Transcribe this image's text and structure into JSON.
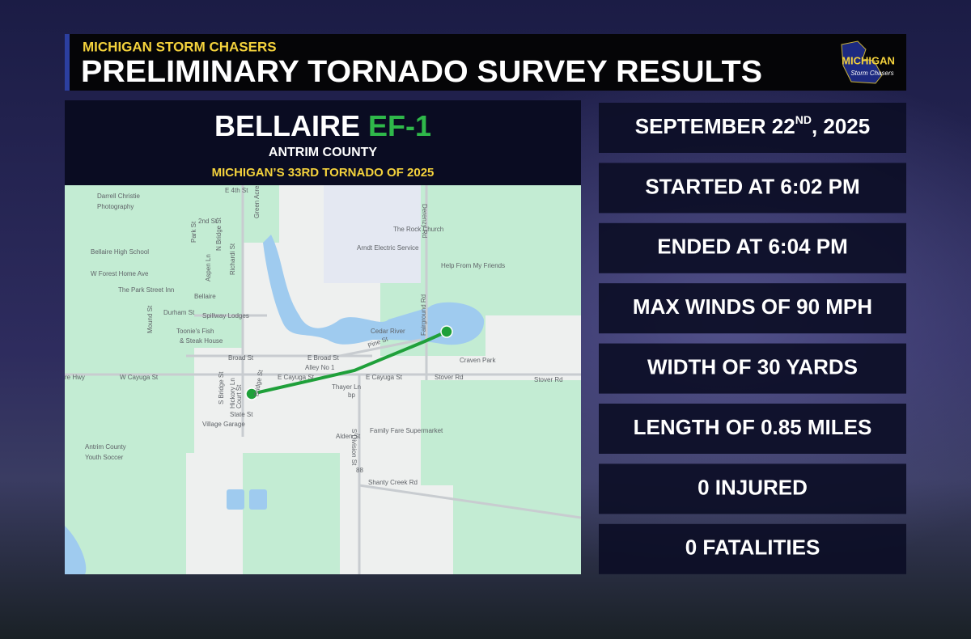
{
  "header": {
    "subtitle": "MICHIGAN STORM CHASERS",
    "title": "PRELIMINARY TORNADO SURVEY RESULTS",
    "logo": "MICHIGAN",
    "logo_script": "Storm Chasers"
  },
  "panel": {
    "town": "BELLAIRE",
    "rating": "EF-1",
    "county": "ANTRIM COUNTY",
    "note": "MICHIGAN’S 33RD TORNADO OF 2025"
  },
  "date": {
    "text": "SEPTEMBER 22",
    "sup": "ND",
    "tail": ", 2025"
  },
  "stats": [
    "STARTED AT 6:02 PM",
    "ENDED AT 6:04 PM",
    "MAX WINDS OF 90 MPH",
    "WIDTH OF 30 YARDS",
    "LENGTH OF 0.85 MILES",
    "0 INJURED",
    "0 FATALITIES"
  ],
  "map": {
    "labels": [
      "Darrell Christie",
      "Photography",
      "E 4th St",
      "2nd St",
      "Park St",
      "N Bridge St",
      "Green Acres Ave",
      "Bellaire High School",
      "W Forest Home Ave",
      "Aspen Ln",
      "Richardi St",
      "Bellaire",
      "The Park Street Inn",
      "Durham St",
      "Spillway Lodges",
      "Toonie's Fish",
      "& Steak House",
      "Mound St",
      "Cedar River",
      "Broad St",
      "E Broad St",
      "Alley No 1",
      "Pine St",
      "re Hwy",
      "W Cayuga St",
      "E Cayuga St",
      "E Cayuga St",
      "Stover Rd",
      "Stover Rd",
      "Craven Park",
      "Thayer Ln",
      "Court St",
      "Hickory Ln",
      "S Bridge St",
      "State St",
      "Village Garage",
      "Antrim County",
      "Youth Soccer",
      "Family Fare Supermarket",
      "Alden St",
      "S Division St",
      "Shanty Creek Rd",
      "Derenzy Rd",
      "The Rock Church",
      "Arndt Electric Service",
      "Help From My Friends",
      "Fairground Rd",
      "bp",
      "88",
      "Bridge St"
    ]
  }
}
